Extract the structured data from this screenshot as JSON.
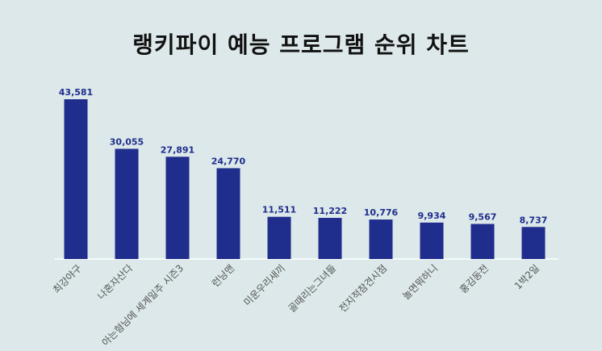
{
  "chart_data": {
    "type": "bar",
    "title": "랭키파이 예능 프로그램 순위 차트",
    "categories": [
      "최강야구",
      "나혼자산다",
      "아는형님에 세계일주 시즌3",
      "런닝맨",
      "미운우리새끼",
      "골때리는그녀들",
      "전지적참견시점",
      "놀면뭐하니",
      "홍김동전",
      "1박2일"
    ],
    "values": [
      43581,
      30055,
      27891,
      24770,
      11511,
      11222,
      10776,
      9934,
      9567,
      8737
    ],
    "value_labels": [
      "43,581",
      "30,055",
      "27,891",
      "24,770",
      "11,511",
      "11,222",
      "10,776",
      "9,934",
      "9,567",
      "8,737"
    ],
    "ylim": [
      0,
      43581
    ],
    "grid": false,
    "legend": "none",
    "xlabel": "",
    "ylabel": ""
  },
  "colors": {
    "background": "#dce8e9",
    "bar": "#1f2d8c",
    "value_label": "#1f2d8c",
    "category_label": "#555555",
    "baseline": "#ffffff",
    "title": "#111111"
  }
}
